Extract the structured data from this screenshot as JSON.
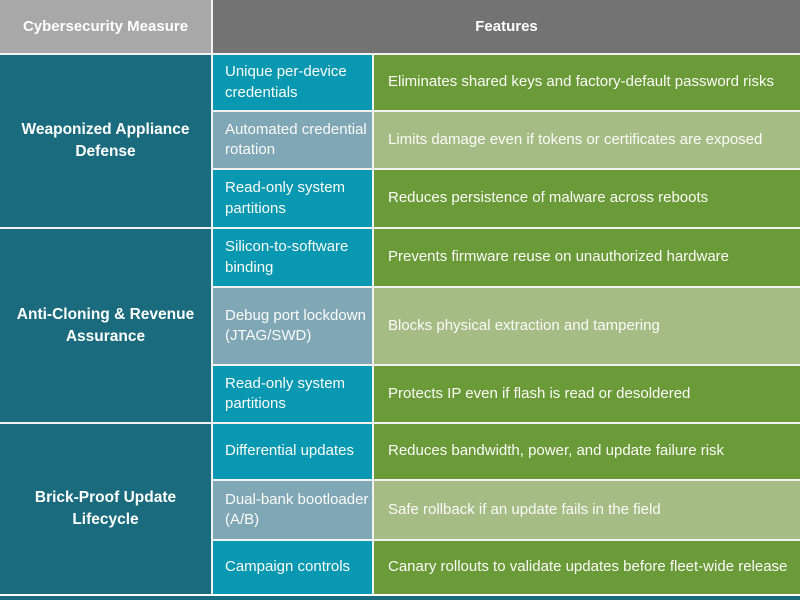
{
  "header": {
    "measure_col": "Cybersecurity Measure",
    "features_col": "Features"
  },
  "groups": [
    {
      "measure": "Weaponized Appliance Defense",
      "rows": [
        {
          "feature": "Unique per-device credentials",
          "description": "Eliminates shared keys and factory-default password risks"
        },
        {
          "feature": "Automated credential rotation",
          "description": "Limits damage even if tokens or certificates are exposed"
        },
        {
          "feature": "Read-only system partitions",
          "description": "Reduces persistence of malware across reboots"
        }
      ]
    },
    {
      "measure": "Anti-Cloning & Revenue Assurance",
      "rows": [
        {
          "feature": "Silicon-to-software binding",
          "description": "Prevents firmware reuse on unauthorized hardware"
        },
        {
          "feature": "Debug port lockdown (JTAG/SWD)",
          "description": "Blocks physical extraction and tampering"
        },
        {
          "feature": "Read-only system partitions",
          "description": "Protects IP even if flash is read or desoldered"
        }
      ]
    },
    {
      "measure": "Brick-Proof Update Lifecycle",
      "rows": [
        {
          "feature": "Differential updates",
          "description": "Reduces bandwidth, power, and update failure risk"
        },
        {
          "feature": "Dual-bank bootloader (A/B)",
          "description": "Safe rollback if an update fails in the field"
        },
        {
          "feature": "Campaign controls",
          "description": "Canary rollouts to validate updates before fleet-wide release"
        }
      ]
    }
  ],
  "colors": {
    "header_left_bg": "#a8a8a8",
    "header_right_bg": "#737373",
    "measure_bg": "#1a6b7d",
    "feature_primary_bg": "#0998b2",
    "feature_alt_bg": "#7fa7b6",
    "desc_primary_bg": "#6b9a39",
    "desc_alt_bg": "#a5bd85",
    "grid_line": "#f2f2f2"
  }
}
